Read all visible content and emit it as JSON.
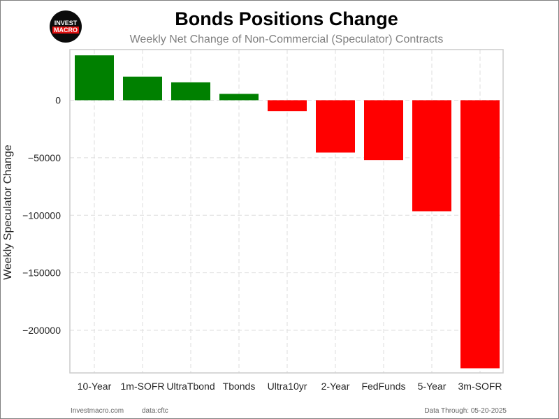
{
  "logo": {
    "top_text": "INVEST",
    "bottom_text": "MACRO"
  },
  "header": {
    "title": "Bonds Positions Change",
    "subtitle": "Weekly Net Change of Non-Commercial (Speculator) Contracts"
  },
  "footer": {
    "site": "Investmacro.com",
    "source": "data:cftc",
    "data_through": "Data Through: 05-20-2025"
  },
  "colors": {
    "positive": "#008000",
    "negative": "#ff0000",
    "grid": "#dddddd",
    "axes": "#cccccc"
  },
  "chart_data": {
    "type": "bar",
    "title": "Bonds Positions Change",
    "subtitle": "Weekly Net Change of Non-Commercial (Speculator) Contracts",
    "xlabel": "",
    "ylabel": "Weekly Speculator Change",
    "categories": [
      "10-Year",
      "1m-SOFR",
      "UltraTbond",
      "Tbonds",
      "Ultra10yr",
      "2-Year",
      "FedFunds",
      "5-Year",
      "3m-SOFR"
    ],
    "values": [
      39000,
      20500,
      15500,
      5500,
      -9500,
      -45500,
      -52000,
      -96500,
      -233000
    ],
    "yticks": [
      0,
      -50000,
      -100000,
      -150000,
      -200000
    ],
    "ytick_labels": [
      "0",
      "−50000",
      "−100000",
      "−150000",
      "−200000"
    ],
    "ylim": [
      -237000,
      44000
    ],
    "grid": true,
    "legend": "none"
  }
}
